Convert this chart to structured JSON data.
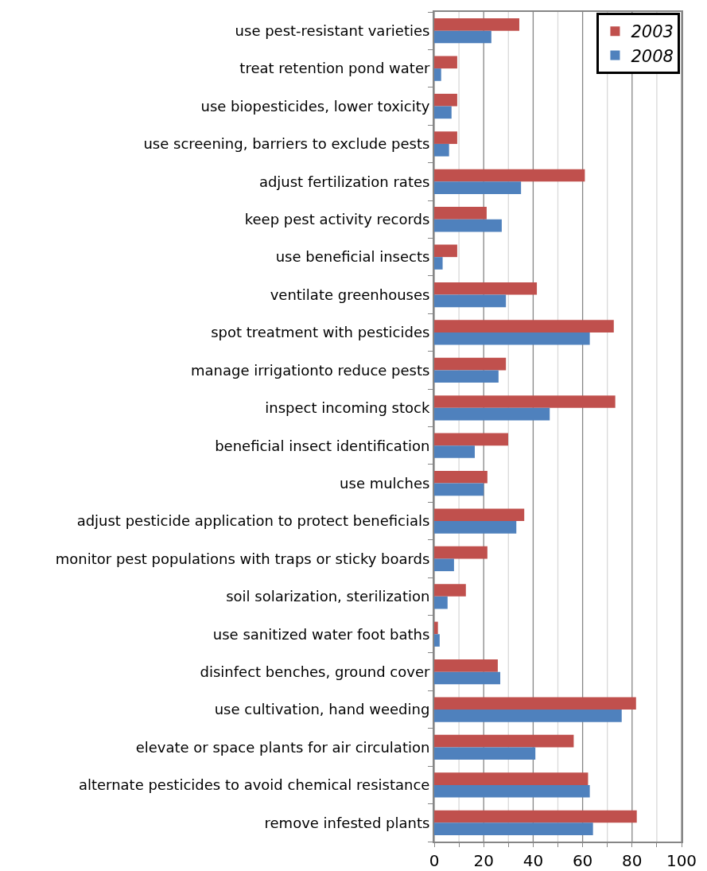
{
  "chart_data": {
    "type": "bar",
    "orientation": "horizontal",
    "categories": [
      "use pest-resistant varieties",
      "treat retention pond water",
      "use biopesticides, lower toxicity",
      "use screening, barriers to exclude pests",
      "adjust fertilization rates",
      "keep pest activity records",
      "use beneficial insects",
      "ventilate greenhouses",
      "spot treatment with pesticides",
      "manage irrigationto reduce pests",
      "inspect incoming stock",
      "beneficial insect identification",
      "use mulches",
      "adjust pesticide application to protect beneficials",
      "monitor pest populations with traps or sticky boards",
      "soil solarization, sterilization",
      "use sanitized water foot baths",
      "disinfect benches, ground cover",
      "use cultivation, hand weeding",
      "elevate or space plants for air circulation",
      "alternate pesticides to avoid chemical resistance",
      "remove infested plants"
    ],
    "series": [
      {
        "name": "2003",
        "color": "#c0504d",
        "values": [
          34.4,
          9.3,
          9.3,
          9.3,
          60.9,
          21.2,
          9.3,
          41.5,
          72.6,
          29.0,
          73.2,
          29.9,
          21.5,
          36.4,
          21.5,
          12.8,
          1.5,
          25.7,
          81.6,
          56.4,
          62.2,
          81.9
        ]
      },
      {
        "name": "2008",
        "color": "#4f81bd",
        "values": [
          23.1,
          2.8,
          7.0,
          6.0,
          35.1,
          27.3,
          3.4,
          29.0,
          62.9,
          26.0,
          46.7,
          16.4,
          20.0,
          33.2,
          8.0,
          5.4,
          2.2,
          26.7,
          75.8,
          40.9,
          62.9,
          64.2
        ]
      }
    ],
    "xlim": [
      0,
      100
    ],
    "xticks": [
      0,
      {
        "value": 10,
        "label": null
      },
      20,
      {
        "value": 30,
        "label": null
      },
      40,
      {
        "value": 50,
        "label": null
      },
      60,
      {
        "value": 70,
        "label": null
      },
      80,
      {
        "value": 90,
        "label": null
      },
      100
    ],
    "grid": "x",
    "legend": "top right"
  }
}
